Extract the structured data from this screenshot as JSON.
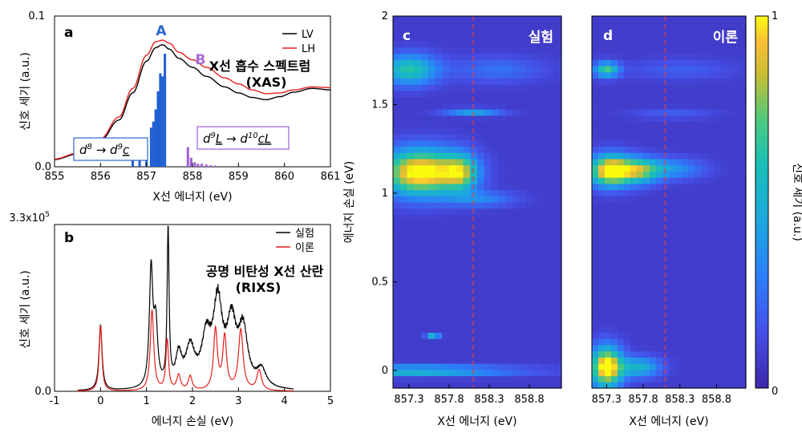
{
  "colors": {
    "lv": "#000000",
    "lh": "#e8201e",
    "exp": "#000000",
    "theory": "#e8201e",
    "stick_a": "#1f5fd1",
    "stick_b": "#a05fd6",
    "label_a": "#2a66c9",
    "label_b": "#a86ad6",
    "box_a": "#2a66c9",
    "box_b": "#a05fd6",
    "cut": "#e04040"
  },
  "chart_data": [
    {
      "id": "a",
      "type": "line",
      "panel_label": "a",
      "title": "X선 흡수 스펙트럼",
      "subtitle": "(XAS)",
      "xlabel": "X선 에너지 (eV)",
      "ylabel": "신호 세기 (a.u.)",
      "xlim": [
        855,
        861
      ],
      "ylim": [
        0,
        0.1
      ],
      "x_ticks": [
        "855",
        "856",
        "857",
        "858",
        "859",
        "860",
        "861"
      ],
      "y_ticks": [
        "0.0",
        "0.1"
      ],
      "legend": "top-right",
      "series": [
        {
          "name": "LV",
          "x": [
            855,
            855.5,
            856,
            856.4,
            856.7,
            857.0,
            857.2,
            857.35,
            857.5,
            857.7,
            858.0,
            858.3,
            858.7,
            859.0,
            859.3,
            859.6,
            859.9,
            860.2,
            860.6,
            861
          ],
          "values": [
            0.0048,
            0.0085,
            0.0175,
            0.031,
            0.049,
            0.07,
            0.079,
            0.081,
            0.078,
            0.072,
            0.066,
            0.06,
            0.053,
            0.049,
            0.046,
            0.0445,
            0.0465,
            0.0495,
            0.052,
            0.051
          ]
        },
        {
          "name": "LH",
          "x": [
            855,
            855.5,
            856,
            856.4,
            856.7,
            857.0,
            857.2,
            857.35,
            857.5,
            857.7,
            858.0,
            858.3,
            858.7,
            859.0,
            859.3,
            859.6,
            859.9,
            860.2,
            860.6,
            861
          ],
          "values": [
            0.0052,
            0.009,
            0.0185,
            0.033,
            0.052,
            0.074,
            0.083,
            0.084,
            0.082,
            0.076,
            0.071,
            0.066,
            0.059,
            0.055,
            0.051,
            0.0485,
            0.049,
            0.051,
            0.053,
            0.0525
          ]
        }
      ],
      "sticks_a": {
        "x": [
          856.7,
          856.85,
          857.0,
          857.1,
          857.15,
          857.2,
          857.25,
          857.3,
          857.35,
          857.4
        ],
        "values": [
          0.004,
          0.01,
          0.018,
          0.026,
          0.03,
          0.038,
          0.05,
          0.062,
          0.06,
          0.075
        ]
      },
      "sticks_b": {
        "x": [
          857.9,
          857.97,
          858.05,
          858.12,
          858.2,
          858.3,
          858.4,
          858.5
        ],
        "values": [
          0.013,
          0.006,
          0.003,
          0.002,
          0.002,
          0.0015,
          0.001,
          0.0008
        ]
      },
      "annotations": {
        "A": "A",
        "B": "B",
        "box_a": {
          "base": "d",
          "sup": "8",
          "arrow": "→",
          "base2": "d",
          "sup2": "9",
          "tail": "c"
        },
        "box_b": {
          "base": "d",
          "sup": "9",
          "mid": "L",
          "arrow": "→",
          "base2": "d",
          "sup2": "10",
          "tail": "cL"
        }
      }
    },
    {
      "id": "b",
      "type": "line",
      "panel_label": "b",
      "title": "공명 비탄성 X선 산란",
      "subtitle": "(RIXS)",
      "xlabel": "에너지 손실 (eV)",
      "ylabel": "신호 세기 (a.u.)",
      "xlim": [
        -1,
        5
      ],
      "ylim": [
        0,
        330000
      ],
      "x_ticks": [
        "-1",
        "0",
        "1",
        "2",
        "3",
        "4",
        "5"
      ],
      "y_ticks": [
        "0.0"
      ],
      "ymax_label": {
        "mantissa": "3.3x10",
        "exp": "5"
      },
      "legend": "top-right",
      "series": [
        {
          "name": "실험",
          "peaks": [
            [
              0,
              130000,
              0.04
            ],
            [
              1.1,
              230000,
              0.045
            ],
            [
              1.2,
              120000,
              0.05
            ],
            [
              1.47,
              310000,
              0.025
            ],
            [
              1.7,
              60000,
              0.08
            ],
            [
              1.95,
              75000,
              0.12
            ],
            [
              2.3,
              90000,
              0.12
            ],
            [
              2.55,
              160000,
              0.12
            ],
            [
              2.85,
              120000,
              0.12
            ],
            [
              3.1,
              110000,
              0.12
            ],
            [
              3.5,
              35000,
              0.12
            ]
          ],
          "baseline": 0
        },
        {
          "name": "이론",
          "peaks": [
            [
              0,
              130000,
              0.035
            ],
            [
              1.12,
              160000,
              0.045
            ],
            [
              1.45,
              100000,
              0.035
            ],
            [
              1.7,
              30000,
              0.05
            ],
            [
              1.95,
              28000,
              0.05
            ],
            [
              2.5,
              120000,
              0.05
            ],
            [
              2.7,
              105000,
              0.05
            ],
            [
              3.05,
              120000,
              0.06
            ],
            [
              3.45,
              40000,
              0.06
            ]
          ],
          "baseline": 0
        }
      ]
    },
    {
      "id": "c",
      "type": "heatmap",
      "panel_label": "c",
      "corner_label": "실험",
      "xlabel": "X선 에너지 (eV)",
      "ylabel": "에너지 손실 (eV)",
      "xlim": [
        857.1,
        859.2
      ],
      "ylim": [
        -0.1,
        2.0
      ],
      "x_ticks": [
        "857.3",
        "857.8",
        "858.3",
        "858.8"
      ],
      "y_ticks": [
        "0",
        "0.5",
        "1",
        "1.5",
        "2"
      ],
      "cut_x": 858.1,
      "blobs": [
        [
          857.45,
          1.12,
          0.35,
          0.09,
          1.0
        ],
        [
          857.95,
          1.12,
          0.15,
          0.07,
          0.55
        ],
        [
          857.3,
          1.7,
          0.25,
          0.06,
          0.55
        ],
        [
          857.3,
          0.0,
          0.9,
          0.02,
          0.5
        ],
        [
          858.1,
          1.46,
          0.25,
          0.015,
          0.35
        ],
        [
          857.6,
          0.2,
          0.06,
          0.006,
          0.45
        ],
        [
          858.2,
          0.97,
          0.3,
          0.03,
          0.25
        ],
        [
          858.4,
          1.7,
          0.4,
          0.05,
          0.18
        ]
      ]
    },
    {
      "id": "d",
      "type": "heatmap",
      "panel_label": "d",
      "corner_label": "이론",
      "xlabel": "X선 에너지 (eV)",
      "xlim": [
        857.1,
        859.2
      ],
      "ylim": [
        -0.1,
        2.0
      ],
      "x_ticks": [
        "857.3",
        "857.8",
        "858.3",
        "858.8"
      ],
      "cut_x": 858.1,
      "blobs": [
        [
          857.35,
          1.13,
          0.2,
          0.06,
          1.0
        ],
        [
          857.75,
          1.13,
          0.2,
          0.05,
          0.6
        ],
        [
          858.2,
          1.14,
          0.3,
          0.04,
          0.3
        ],
        [
          857.3,
          1.7,
          0.12,
          0.03,
          0.6
        ],
        [
          857.3,
          0.02,
          0.15,
          0.08,
          1.0
        ],
        [
          857.75,
          0.02,
          0.2,
          0.04,
          0.45
        ],
        [
          858.3,
          1.7,
          0.5,
          0.04,
          0.12
        ],
        [
          858.2,
          1.45,
          0.4,
          0.02,
          0.12
        ]
      ]
    },
    {
      "id": "colorbar",
      "type": "colorbar",
      "ylabel": "신호 세기 (a.u.)",
      "range": [
        0,
        1
      ],
      "ticks": [
        "1",
        "0"
      ]
    }
  ]
}
